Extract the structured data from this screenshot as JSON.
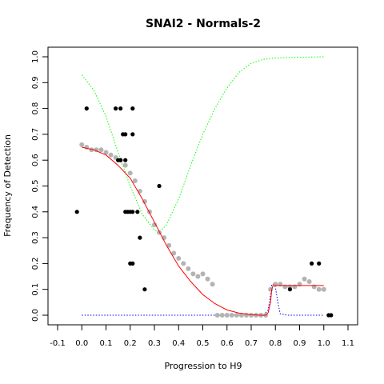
{
  "chart_data": {
    "type": "scatter",
    "title": "SNAI2 - Normals-2",
    "xlabel": "Progression to H9",
    "ylabel": "Frequency of Detection",
    "xlim": [
      -0.1,
      1.1
    ],
    "ylim": [
      0.0,
      1.0
    ],
    "x_ticks": [
      "-0.1",
      "0.0",
      "0.1",
      "0.2",
      "0.3",
      "0.4",
      "0.5",
      "0.6",
      "0.7",
      "0.8",
      "0.9",
      "1.0",
      "1.1"
    ],
    "y_ticks": [
      "0.0",
      "0.1",
      "0.2",
      "0.3",
      "0.4",
      "0.5",
      "0.6",
      "0.7",
      "0.8",
      "0.9",
      "1.0"
    ],
    "grid": false,
    "legend": "none",
    "colors": {
      "observed": "#000000",
      "smoothed": "#b3b3b3",
      "fit": "#ff0000",
      "upper_band": "#00ff00",
      "lower_band": "#0000ff"
    },
    "series": [
      {
        "role": "observed",
        "x": [
          -0.02,
          0.02,
          0.14,
          0.16,
          0.21,
          0.17,
          0.18,
          0.21,
          0.15,
          0.16,
          0.18,
          0.18,
          0.19,
          0.2,
          0.21,
          0.23,
          0.24,
          0.2,
          0.21,
          0.26,
          0.32,
          0.86,
          0.95,
          0.98,
          1.02,
          1.03
        ],
        "y": [
          0.4,
          0.8,
          0.8,
          0.8,
          0.8,
          0.7,
          0.7,
          0.7,
          0.6,
          0.6,
          0.6,
          0.4,
          0.4,
          0.4,
          0.4,
          0.4,
          0.3,
          0.2,
          0.2,
          0.1,
          0.5,
          0.1,
          0.2,
          0.2,
          0.0,
          0.0
        ]
      },
      {
        "role": "smoothed",
        "x": [
          0.0,
          0.02,
          0.04,
          0.06,
          0.08,
          0.1,
          0.12,
          0.14,
          0.16,
          0.18,
          0.2,
          0.22,
          0.24,
          0.26,
          0.28,
          0.3,
          0.32,
          0.34,
          0.36,
          0.38,
          0.4,
          0.42,
          0.44,
          0.46,
          0.48,
          0.5,
          0.52,
          0.54,
          0.56,
          0.58,
          0.6,
          0.62,
          0.64,
          0.66,
          0.68,
          0.7,
          0.72,
          0.74,
          0.76,
          0.78,
          0.8,
          0.82,
          0.84,
          0.86,
          0.88,
          0.9,
          0.92,
          0.94,
          0.96,
          0.98,
          1.0
        ],
        "y": [
          0.66,
          0.65,
          0.64,
          0.64,
          0.64,
          0.63,
          0.62,
          0.61,
          0.6,
          0.58,
          0.55,
          0.52,
          0.48,
          0.44,
          0.4,
          0.35,
          0.32,
          0.3,
          0.27,
          0.24,
          0.22,
          0.2,
          0.18,
          0.16,
          0.15,
          0.16,
          0.14,
          0.12,
          0.0,
          0.0,
          0.0,
          0.0,
          0.0,
          0.0,
          0.0,
          0.0,
          0.0,
          0.0,
          0.0,
          0.1,
          0.12,
          0.12,
          0.11,
          0.11,
          0.11,
          0.12,
          0.14,
          0.13,
          0.11,
          0.1,
          0.1
        ]
      },
      {
        "role": "fit",
        "x": [
          0.0,
          0.05,
          0.1,
          0.15,
          0.2,
          0.25,
          0.3,
          0.35,
          0.4,
          0.45,
          0.5,
          0.55,
          0.6,
          0.65,
          0.7,
          0.74,
          0.76,
          0.77,
          0.78,
          0.785,
          0.79,
          0.8,
          0.85,
          0.9,
          0.95,
          1.0
        ],
        "y": [
          0.65,
          0.64,
          0.62,
          0.58,
          0.53,
          0.45,
          0.36,
          0.27,
          0.19,
          0.13,
          0.08,
          0.045,
          0.02,
          0.008,
          0.002,
          0.0,
          0.0,
          0.01,
          0.05,
          0.1,
          0.115,
          0.115,
          0.115,
          0.115,
          0.115,
          0.115
        ]
      },
      {
        "role": "upper_band",
        "x": [
          0.0,
          0.05,
          0.1,
          0.15,
          0.2,
          0.25,
          0.3,
          0.32,
          0.35,
          0.4,
          0.45,
          0.5,
          0.55,
          0.6,
          0.65,
          0.7,
          0.75,
          0.8,
          0.85,
          0.9,
          0.95,
          1.0
        ],
        "y": [
          0.93,
          0.87,
          0.77,
          0.63,
          0.5,
          0.39,
          0.33,
          0.32,
          0.35,
          0.45,
          0.58,
          0.7,
          0.8,
          0.88,
          0.94,
          0.975,
          0.99,
          0.995,
          0.997,
          0.998,
          0.999,
          1.0
        ]
      },
      {
        "role": "lower_band",
        "x": [
          0.0,
          0.1,
          0.2,
          0.3,
          0.4,
          0.5,
          0.6,
          0.7,
          0.75,
          0.77,
          0.78,
          0.785,
          0.79,
          0.8,
          0.81,
          0.82,
          0.85,
          0.9,
          1.0
        ],
        "y": [
          0.0,
          0.0,
          0.0,
          0.0,
          0.0,
          0.0,
          0.0,
          0.0,
          0.0,
          0.02,
          0.08,
          0.12,
          0.12,
          0.11,
          0.05,
          0.005,
          0.0,
          0.0,
          0.0
        ]
      }
    ]
  }
}
